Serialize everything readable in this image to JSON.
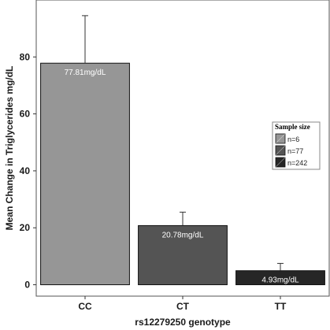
{
  "chart_data": {
    "type": "bar",
    "categories": [
      "CC",
      "CT",
      "TT"
    ],
    "values": [
      77.81,
      20.78,
      4.93
    ],
    "error_upper": [
      94.5,
      25.5,
      7.5
    ],
    "bar_labels": [
      "77.81mg/dL",
      "20.78mg/dL",
      "4.93mg/dL"
    ],
    "bar_colors": [
      "#969696",
      "#545454",
      "#262626"
    ],
    "xlabel": "rs12279250 genotype",
    "ylabel": "Mean Change in Triglycerides mg/dL",
    "ylim": [
      -4,
      100
    ],
    "y_ticks": [
      "0",
      "20",
      "40",
      "60",
      "80"
    ],
    "grid": false,
    "legend": {
      "title": "Sample size",
      "placement": "right",
      "entries": [
        "n=6",
        "n=77",
        "n=242"
      ]
    }
  }
}
